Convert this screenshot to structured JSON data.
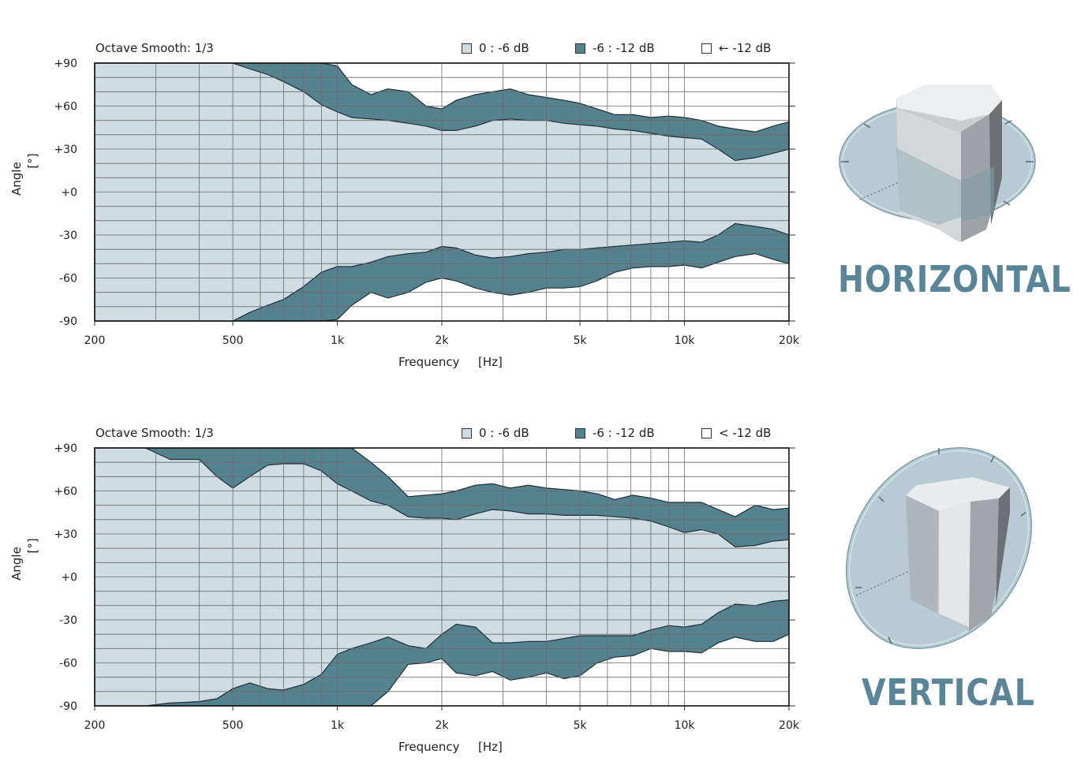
{
  "chart_data": [
    {
      "type": "area",
      "title": "",
      "subtitle": "Octave Smooth: 1/3",
      "xlabel": "Frequency",
      "xunit": "[Hz]",
      "ylabel": "Angle",
      "yunit": "[°]",
      "xscale": "log",
      "xlim": [
        200,
        20000
      ],
      "ylim": [
        -90,
        90
      ],
      "xticks": [
        {
          "value": 200,
          "label": "200"
        },
        {
          "value": 500,
          "label": "500"
        },
        {
          "value": 1000,
          "label": "1k"
        },
        {
          "value": 2000,
          "label": "2k"
        },
        {
          "value": 5000,
          "label": "5k"
        },
        {
          "value": 10000,
          "label": "10k"
        },
        {
          "value": 20000,
          "label": "20k"
        }
      ],
      "yticks": [
        {
          "value": 90,
          "label": "+90"
        },
        {
          "value": 60,
          "label": "+60"
        },
        {
          "value": 30,
          "label": "+30"
        },
        {
          "value": 0,
          "label": "+0"
        },
        {
          "value": -30,
          "label": "-30"
        },
        {
          "value": -60,
          "label": "-60"
        },
        {
          "value": -90,
          "label": "-90"
        }
      ],
      "grid": true,
      "legend_position": "top-right",
      "legend": [
        {
          "label": "0 : -6 dB",
          "color": "#d0dce3"
        },
        {
          "label": "-6 : -12 dB",
          "color": "#55828f"
        },
        {
          "label": "← -12 dB",
          "color": "#ffffff"
        }
      ],
      "x": [
        200,
        300,
        400,
        500,
        560,
        630,
        700,
        800,
        900,
        1000,
        1100,
        1250,
        1400,
        1600,
        1800,
        2000,
        2200,
        2500,
        2800,
        3150,
        3550,
        4000,
        4500,
        5000,
        5600,
        6300,
        7100,
        8000,
        9000,
        10000,
        11200,
        12500,
        14000,
        16000,
        18000,
        20000
      ],
      "upper_6db": [
        90,
        90,
        90,
        90,
        86,
        82,
        77,
        70,
        61,
        56,
        52,
        51,
        50,
        48,
        46,
        43,
        43,
        46,
        50,
        51,
        50,
        50,
        48,
        47,
        46,
        44,
        43,
        41,
        39,
        38,
        37,
        30,
        22,
        24,
        27,
        30
      ],
      "upper_12db": [
        90,
        90,
        90,
        90,
        90,
        90,
        90,
        90,
        90,
        88,
        75,
        68,
        72,
        70,
        60,
        58,
        64,
        68,
        70,
        72,
        68,
        66,
        64,
        62,
        58,
        54,
        54,
        52,
        53,
        52,
        50,
        46,
        44,
        42,
        46,
        49
      ],
      "lower_6db": [
        -90,
        -90,
        -90,
        -90,
        -84,
        -79,
        -75,
        -66,
        -56,
        -52,
        -52,
        -49,
        -45,
        -43,
        -42,
        -38,
        -39,
        -44,
        -46,
        -45,
        -43,
        -42,
        -40,
        -40,
        -39,
        -38,
        -37,
        -36,
        -35,
        -34,
        -35,
        -30,
        -22,
        -24,
        -26,
        -30
      ],
      "lower_12db": [
        -90,
        -90,
        -90,
        -90,
        -90,
        -90,
        -90,
        -90,
        -90,
        -89,
        -79,
        -70,
        -74,
        -70,
        -63,
        -60,
        -62,
        -67,
        -70,
        -72,
        -70,
        -67,
        -67,
        -66,
        -62,
        -56,
        -53,
        -52,
        -52,
        -51,
        -53,
        -49,
        -45,
        -43,
        -47,
        -50
      ]
    },
    {
      "type": "area",
      "title": "",
      "subtitle": "Octave Smooth: 1/3",
      "xlabel": "Frequency",
      "xunit": "[Hz]",
      "ylabel": "Angle",
      "yunit": "[°]",
      "xscale": "log",
      "xlim": [
        200,
        20000
      ],
      "ylim": [
        -90,
        90
      ],
      "xticks": [
        {
          "value": 200,
          "label": "200"
        },
        {
          "value": 500,
          "label": "500"
        },
        {
          "value": 1000,
          "label": "1k"
        },
        {
          "value": 2000,
          "label": "2k"
        },
        {
          "value": 5000,
          "label": "5k"
        },
        {
          "value": 10000,
          "label": "10k"
        },
        {
          "value": 20000,
          "label": "20k"
        }
      ],
      "yticks": [
        {
          "value": 90,
          "label": "+90"
        },
        {
          "value": 60,
          "label": "+60"
        },
        {
          "value": 30,
          "label": "+30"
        },
        {
          "value": 0,
          "label": "+0"
        },
        {
          "value": -30,
          "label": "-30"
        },
        {
          "value": -60,
          "label": "-60"
        },
        {
          "value": -90,
          "label": "-90"
        }
      ],
      "grid": true,
      "legend_position": "top-right",
      "legend": [
        {
          "label": "0 : -6 dB",
          "color": "#d0dce3"
        },
        {
          "label": "-6 : -12 dB",
          "color": "#55828f"
        },
        {
          "label": "< -12 dB",
          "color": "#ffffff"
        }
      ],
      "x": [
        200,
        280,
        330,
        400,
        450,
        500,
        560,
        630,
        700,
        800,
        900,
        1000,
        1100,
        1250,
        1400,
        1600,
        1800,
        2000,
        2200,
        2500,
        2800,
        3150,
        3550,
        4000,
        4500,
        5000,
        5600,
        6300,
        7100,
        8000,
        9000,
        10000,
        11200,
        12500,
        14000,
        16000,
        18000,
        20000
      ],
      "upper_6db": [
        90,
        90,
        82,
        82,
        70,
        62,
        70,
        78,
        79,
        79,
        74,
        65,
        60,
        53,
        50,
        42,
        41,
        41,
        40,
        44,
        47,
        46,
        44,
        44,
        43,
        43,
        43,
        42,
        41,
        39,
        35,
        31,
        33,
        30,
        21,
        22,
        25,
        26
      ],
      "upper_12db": [
        90,
        90,
        90,
        90,
        90,
        90,
        90,
        90,
        90,
        90,
        90,
        90,
        90,
        80,
        70,
        56,
        57,
        58,
        60,
        64,
        65,
        62,
        64,
        62,
        61,
        60,
        58,
        54,
        57,
        55,
        52,
        52,
        52,
        47,
        42,
        50,
        47,
        48
      ],
      "lower_6db": [
        -90,
        -90,
        -88,
        -87,
        -85,
        -78,
        -74,
        -78,
        -79,
        -75,
        -68,
        -54,
        -50,
        -46,
        -42,
        -48,
        -50,
        -40,
        -33,
        -35,
        -46,
        -46,
        -45,
        -45,
        -43,
        -41,
        -41,
        -41,
        -41,
        -37,
        -34,
        -35,
        -33,
        -25,
        -19,
        -20,
        -17,
        -16
      ],
      "lower_12db": [
        -90,
        -90,
        -90,
        -90,
        -90,
        -90,
        -90,
        -90,
        -90,
        -90,
        -90,
        -90,
        -90,
        -90,
        -80,
        -61,
        -60,
        -57,
        -67,
        -69,
        -66,
        -72,
        -70,
        -67,
        -71,
        -69,
        -60,
        -56,
        -55,
        -50,
        -52,
        -52,
        -53,
        -46,
        -42,
        -45,
        -45,
        -40
      ]
    }
  ],
  "labels": {
    "horizontal": "HORIZONTAL",
    "vertical": "VERTICAL"
  },
  "colors": {
    "light_fill": "#d0dce3",
    "dark_fill": "#55828f",
    "title_color": "#5a8497",
    "grid": "#6a6a6a"
  },
  "icons": {
    "horizontal": "speaker-horizontal-dispersion-icon",
    "vertical": "speaker-vertical-dispersion-icon"
  }
}
